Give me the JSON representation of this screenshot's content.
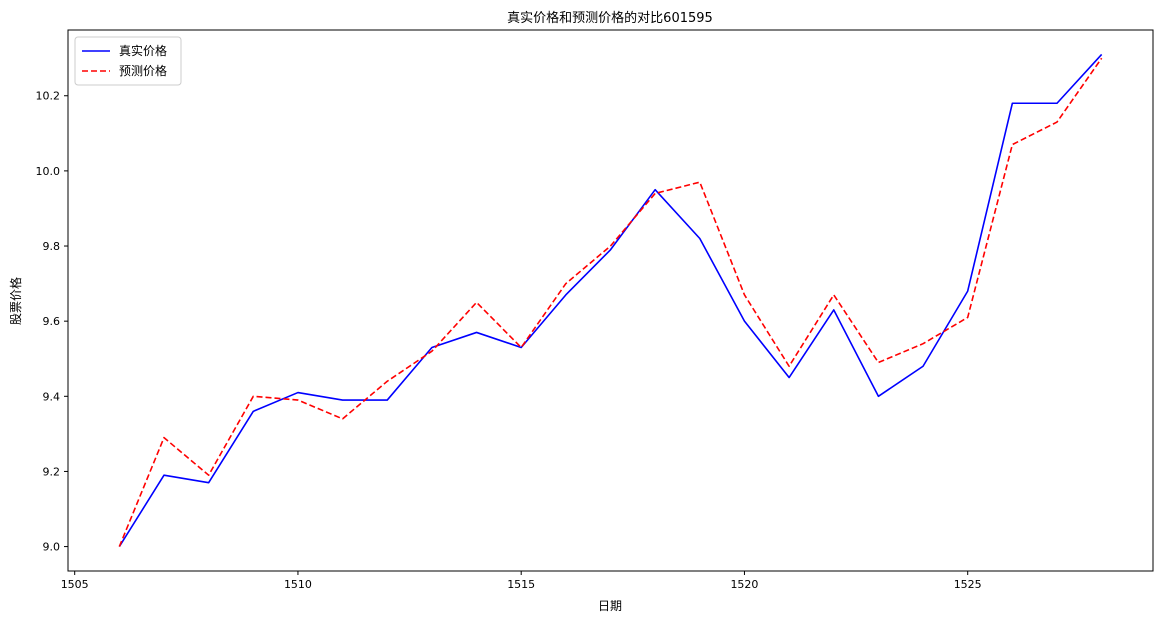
{
  "chart_data": {
    "type": "line",
    "title": "真实价格和预测价格的对比601595",
    "xlabel": "日期",
    "ylabel": "股票价格",
    "x": [
      1506,
      1507,
      1508,
      1509,
      1510,
      1511,
      1512,
      1513,
      1514,
      1515,
      1516,
      1517,
      1518,
      1519,
      1520,
      1521,
      1522,
      1523,
      1524,
      1525,
      1526,
      1527,
      1528
    ],
    "series": [
      {
        "name": "真实价格",
        "color": "#0000ff",
        "style": "solid",
        "values": [
          9.0,
          9.19,
          9.17,
          9.36,
          9.41,
          9.39,
          9.39,
          9.53,
          9.57,
          9.53,
          9.67,
          9.79,
          9.95,
          9.82,
          9.6,
          9.45,
          9.63,
          9.4,
          9.48,
          9.68,
          10.18,
          10.18,
          10.31
        ]
      },
      {
        "name": "预测价格",
        "color": "#ff0000",
        "style": "dashed",
        "values": [
          9.0,
          9.29,
          9.19,
          9.4,
          9.39,
          9.34,
          9.44,
          9.52,
          9.65,
          9.53,
          9.7,
          9.8,
          9.94,
          9.97,
          9.67,
          9.48,
          9.67,
          9.49,
          9.54,
          9.61,
          10.07,
          10.13,
          10.3
        ]
      }
    ],
    "xlim": [
      1504.85,
      1529.15
    ],
    "ylim": [
      8.935,
      10.375
    ],
    "xticks": [
      1505,
      1510,
      1515,
      1520,
      1525
    ],
    "yticks": [
      9.0,
      9.2,
      9.4,
      9.6,
      9.8,
      10.0,
      10.2
    ],
    "legend_position": "top-left",
    "grid": false
  }
}
